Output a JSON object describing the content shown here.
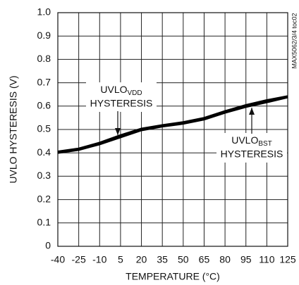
{
  "chart_data": {
    "type": "line",
    "x_label": "TEMPERATURE (°C)",
    "y_label": "UVLO HYSTERESIS (V)",
    "note": "MAX5062/3/4 toc02",
    "x": [
      -40,
      -25,
      -10,
      5,
      20,
      35,
      50,
      65,
      80,
      95,
      110,
      125
    ],
    "series": [
      {
        "color": "#000000",
        "values": [
          0.4,
          0.413,
          0.437,
          0.467,
          0.497,
          0.513,
          0.525,
          0.543,
          0.572,
          0.597,
          0.617,
          0.638
        ]
      },
      {
        "color": "#000000",
        "values": [
          0.405,
          0.418,
          0.443,
          0.475,
          0.503,
          0.518,
          0.531,
          0.549,
          0.578,
          0.604,
          0.625,
          0.642
        ]
      }
    ],
    "annotations": [
      {
        "text": "UVLO",
        "sub": "VDD",
        "line2": "HYSTERESIS"
      },
      {
        "text": "UVLO",
        "sub": "BST",
        "line2": "HYSTERESIS"
      }
    ],
    "xlim": [
      -40,
      125
    ],
    "xticks": [
      -40,
      -25,
      -10,
      5,
      20,
      35,
      50,
      65,
      80,
      95,
      110,
      125
    ],
    "ylim": [
      0,
      1
    ],
    "yticks": [
      0,
      0.1,
      0.2,
      0.3,
      0.4,
      0.5,
      0.6,
      0.7,
      0.8,
      0.9,
      {
        "value": 1,
        "label": "1.0"
      }
    ],
    "grid": true
  }
}
